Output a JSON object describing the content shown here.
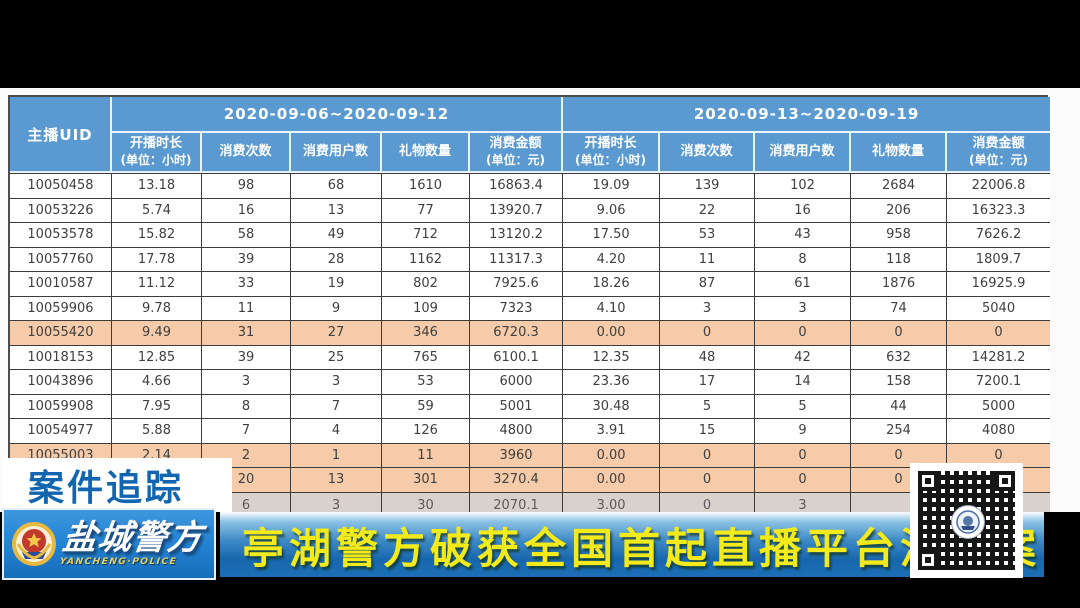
{
  "colors": {
    "header-blue": "#5b9ad0",
    "highlight-salmon": "#f5cbaa",
    "partial-row-gray": "#d9d1cc",
    "body-text": "#3f3f3f",
    "case-label-blue": "#1266b0",
    "ribbon-yellow": "#f2ea1b"
  },
  "table": {
    "corner_header": "主播UID",
    "groups": [
      {
        "date_range": "2020-09-06~2020-09-12"
      },
      {
        "date_range": "2020-09-13~2020-09-19"
      }
    ],
    "sub_columns": [
      {
        "label": "开播时长",
        "unit": "(单位：小时)"
      },
      {
        "label": "消费次数",
        "unit": ""
      },
      {
        "label": "消费用户数",
        "unit": ""
      },
      {
        "label": "礼物数量",
        "unit": ""
      },
      {
        "label": "消费金额",
        "unit": "(单位：元)"
      }
    ],
    "rows": [
      {
        "uid": "10050458",
        "values": [
          "13.18",
          "98",
          "68",
          "1610",
          "16863.4",
          "19.09",
          "139",
          "102",
          "2684",
          "22006.8"
        ],
        "highlight": false,
        "partial": false
      },
      {
        "uid": "10053226",
        "values": [
          "5.74",
          "16",
          "13",
          "77",
          "13920.7",
          "9.06",
          "22",
          "16",
          "206",
          "16323.3"
        ],
        "highlight": false,
        "partial": false
      },
      {
        "uid": "10053578",
        "values": [
          "15.82",
          "58",
          "49",
          "712",
          "13120.2",
          "17.50",
          "53",
          "43",
          "958",
          "7626.2"
        ],
        "highlight": false,
        "partial": false
      },
      {
        "uid": "10057760",
        "values": [
          "17.78",
          "39",
          "28",
          "1162",
          "11317.3",
          "4.20",
          "11",
          "8",
          "118",
          "1809.7"
        ],
        "highlight": false,
        "partial": false
      },
      {
        "uid": "10010587",
        "values": [
          "11.12",
          "33",
          "19",
          "802",
          "7925.6",
          "18.26",
          "87",
          "61",
          "1876",
          "16925.9"
        ],
        "highlight": false,
        "partial": false
      },
      {
        "uid": "10059906",
        "values": [
          "9.78",
          "11",
          "9",
          "109",
          "7323",
          "4.10",
          "3",
          "3",
          "74",
          "5040"
        ],
        "highlight": false,
        "partial": false
      },
      {
        "uid": "10055420",
        "values": [
          "9.49",
          "31",
          "27",
          "346",
          "6720.3",
          "0.00",
          "0",
          "0",
          "0",
          "0"
        ],
        "highlight": true,
        "partial": false
      },
      {
        "uid": "10018153",
        "values": [
          "12.85",
          "39",
          "25",
          "765",
          "6100.1",
          "12.35",
          "48",
          "42",
          "632",
          "14281.2"
        ],
        "highlight": false,
        "partial": false
      },
      {
        "uid": "10043896",
        "values": [
          "4.66",
          "3",
          "3",
          "53",
          "6000",
          "23.36",
          "17",
          "14",
          "158",
          "7200.1"
        ],
        "highlight": false,
        "partial": false
      },
      {
        "uid": "10059908",
        "values": [
          "7.95",
          "8",
          "7",
          "59",
          "5001",
          "30.48",
          "5",
          "5",
          "44",
          "5000"
        ],
        "highlight": false,
        "partial": false
      },
      {
        "uid": "10054977",
        "values": [
          "5.88",
          "7",
          "4",
          "126",
          "4800",
          "3.91",
          "15",
          "9",
          "254",
          "4080"
        ],
        "highlight": false,
        "partial": false
      },
      {
        "uid": "10055003",
        "values": [
          "2.14",
          "2",
          "1",
          "11",
          "3960",
          "0.00",
          "0",
          "0",
          "0",
          "0"
        ],
        "highlight": true,
        "partial": false
      },
      {
        "uid": "",
        "values": [
          "",
          "20",
          "13",
          "301",
          "3270.4",
          "0.00",
          "0",
          "0",
          "0",
          ""
        ],
        "highlight": true,
        "partial": false
      },
      {
        "uid": "",
        "values": [
          "",
          "6",
          "3",
          "30",
          "2070.1",
          "3.00",
          "0",
          "3",
          "",
          ""
        ],
        "highlight": false,
        "partial": true
      }
    ]
  },
  "overlays": {
    "case_label": "案件追踪",
    "headline": "亭湖警方破获全国首起直播平台涉赌案",
    "logo": {
      "title": "盐城警方",
      "subtitle": "YANCHENG·POLICE"
    },
    "icons": {
      "qr": "qr-code",
      "badge": "police-badge"
    }
  }
}
